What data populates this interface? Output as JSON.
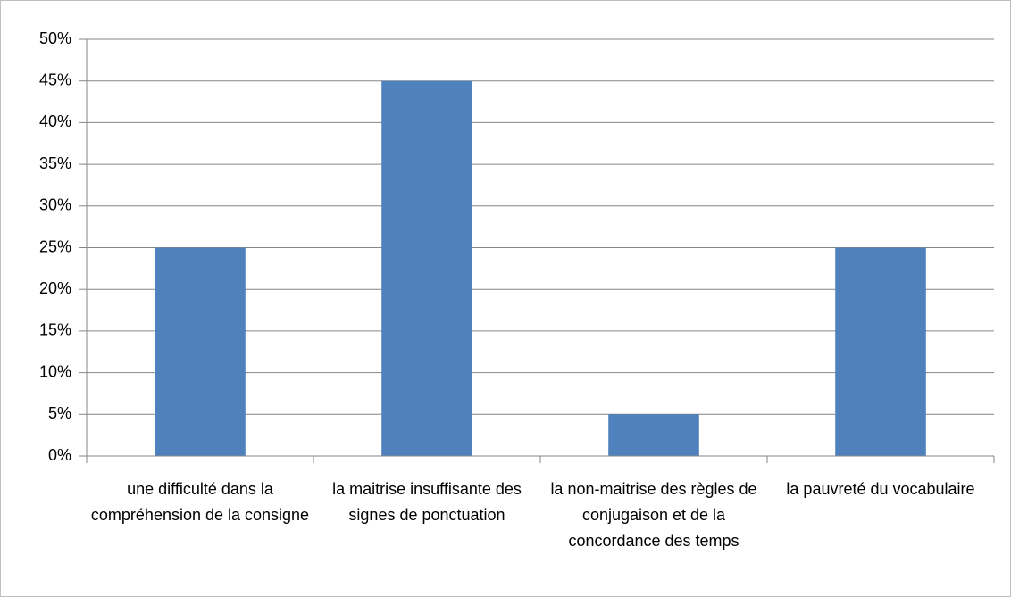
{
  "chart_data": {
    "type": "bar",
    "categories": [
      "une difficulté dans la compréhension de la consigne",
      "la maitrise insuffisante des signes de ponctuation",
      "la non-maitrise des règles de conjugaison et de la concordance des temps",
      "la pauvreté du vocabulaire"
    ],
    "values": [
      25,
      45,
      5,
      25
    ],
    "color": "#4f81bd",
    "ylim": [
      0,
      50
    ],
    "yticks": [
      {
        "value": 0,
        "label": "0%"
      },
      {
        "value": 5,
        "label": "5%"
      },
      {
        "value": 10,
        "label": "10%"
      },
      {
        "value": 15,
        "label": "15%"
      },
      {
        "value": 20,
        "label": "20%"
      },
      {
        "value": 25,
        "label": "25%"
      },
      {
        "value": 30,
        "label": "30%"
      },
      {
        "value": 35,
        "label": "35%"
      },
      {
        "value": 40,
        "label": "40%"
      },
      {
        "value": 45,
        "label": "45%"
      },
      {
        "value": 50,
        "label": "50%"
      }
    ],
    "grid": true
  }
}
